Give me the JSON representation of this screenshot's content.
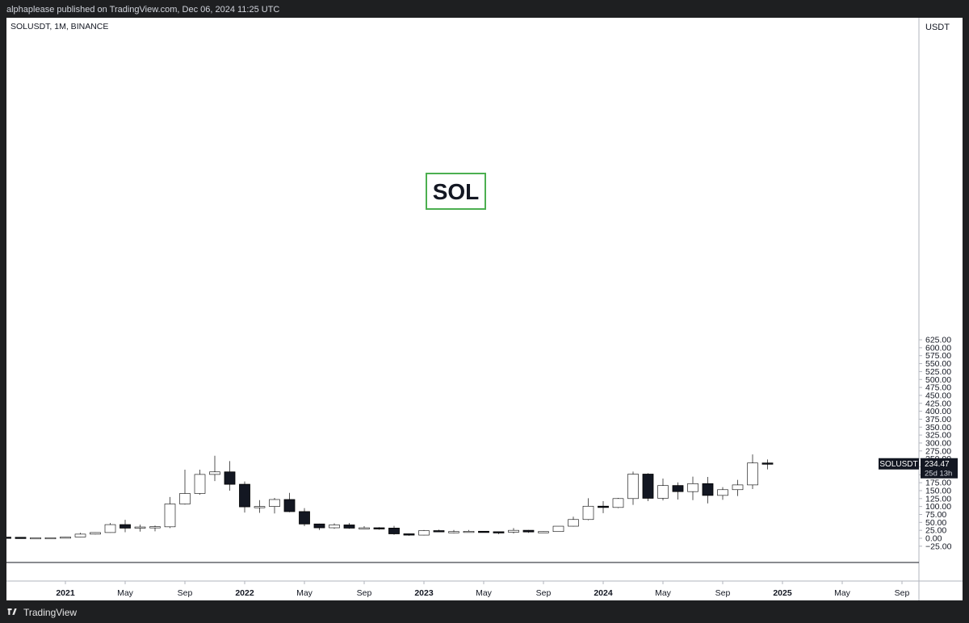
{
  "header": {
    "published_line": "alphaplease published on TradingView.com, Dec 06, 2024 11:25 UTC"
  },
  "footer": {
    "brand": "TradingView",
    "logo_icon": "tradingview-logo-icon"
  },
  "colors": {
    "panel_bg": "#ffffff",
    "up_candle_fill": "#ffffff",
    "candle_outline": "#000000",
    "down_candle_fill": "#131722",
    "wick": "#555555",
    "label_box": "#4caf50",
    "price_tag_bg": "#131722",
    "axis_text": "#131722"
  },
  "chart_data": {
    "type": "candlestick",
    "symbol_line": "SOLUSDT, 1M, BINANCE",
    "currency": "USDT",
    "annotation": "SOL",
    "price_tag": {
      "symbol": "SOLUSDT",
      "value": "234.47",
      "countdown": "25d 13h",
      "price": 234.47
    },
    "ylim": [
      -30,
      635
    ],
    "y_ticks": [
      -25,
      0,
      25,
      50,
      75,
      100,
      125,
      150,
      175,
      200,
      225,
      250,
      275,
      300,
      325,
      350,
      375,
      400,
      425,
      450,
      475,
      500,
      525,
      550,
      575,
      600,
      625
    ],
    "y_tick_labels": [
      "−25.00",
      "0.00",
      "25.00",
      "50.00",
      "75.00",
      "100.00",
      "125.00",
      "150.00",
      "175.00",
      "200.00",
      "225.00",
      "250.00",
      "275.00",
      "300.00",
      "325.00",
      "350.00",
      "375.00",
      "400.00",
      "425.00",
      "450.00",
      "475.00",
      "500.00",
      "525.00",
      "550.00",
      "575.00",
      "600.00",
      "625.00"
    ],
    "x_ticks": [
      {
        "label": "2021",
        "month_index": 0,
        "major": true
      },
      {
        "label": "May",
        "month_index": 4,
        "major": false
      },
      {
        "label": "Sep",
        "month_index": 8,
        "major": false
      },
      {
        "label": "2022",
        "month_index": 12,
        "major": true
      },
      {
        "label": "May",
        "month_index": 16,
        "major": false
      },
      {
        "label": "Sep",
        "month_index": 20,
        "major": false
      },
      {
        "label": "2023",
        "month_index": 24,
        "major": true
      },
      {
        "label": "May",
        "month_index": 28,
        "major": false
      },
      {
        "label": "Sep",
        "month_index": 32,
        "major": false
      },
      {
        "label": "2024",
        "month_index": 36,
        "major": true
      },
      {
        "label": "May",
        "month_index": 40,
        "major": false
      },
      {
        "label": "Sep",
        "month_index": 44,
        "major": false
      },
      {
        "label": "2025",
        "month_index": 48,
        "major": true
      },
      {
        "label": "May",
        "month_index": 52,
        "major": false
      },
      {
        "label": "Sep",
        "month_index": 56,
        "major": false
      }
    ],
    "candles": [
      {
        "date": "2020-09",
        "o": 3.5,
        "h": 4.5,
        "l": 2.0,
        "c": 3.0
      },
      {
        "date": "2020-10",
        "o": 3.0,
        "h": 3.5,
        "l": 1.5,
        "c": 2.0
      },
      {
        "date": "2020-11",
        "o": 1.5,
        "h": 2.5,
        "l": 1.2,
        "c": 1.8
      },
      {
        "date": "2020-12",
        "o": 1.5,
        "h": 2.2,
        "l": 1.3,
        "c": 1.9
      },
      {
        "date": "2021-01",
        "o": 1.5,
        "h": 4.5,
        "l": 1.4,
        "c": 4.0
      },
      {
        "date": "2021-02",
        "o": 4.0,
        "h": 17.0,
        "l": 3.5,
        "c": 13.0
      },
      {
        "date": "2021-03",
        "o": 13.0,
        "h": 18.5,
        "l": 12.0,
        "c": 18.0
      },
      {
        "date": "2021-04",
        "o": 18.0,
        "h": 48.0,
        "l": 17.5,
        "c": 43.0
      },
      {
        "date": "2021-05",
        "o": 43.0,
        "h": 58.0,
        "l": 19.0,
        "c": 32.0
      },
      {
        "date": "2021-06",
        "o": 32.0,
        "h": 43.0,
        "l": 21.0,
        "c": 35.5
      },
      {
        "date": "2021-07",
        "o": 35.0,
        "h": 40.0,
        "l": 22.0,
        "c": 36.5
      },
      {
        "date": "2021-08",
        "o": 36.0,
        "h": 130.0,
        "l": 32.0,
        "c": 108.0
      },
      {
        "date": "2021-09",
        "o": 108.0,
        "h": 216.0,
        "l": 106.0,
        "c": 141.0
      },
      {
        "date": "2021-10",
        "o": 141.0,
        "h": 216.0,
        "l": 137.0,
        "c": 201.0
      },
      {
        "date": "2021-11",
        "o": 201.0,
        "h": 260.0,
        "l": 180.0,
        "c": 209.0
      },
      {
        "date": "2021-12",
        "o": 209.0,
        "h": 243.0,
        "l": 150.0,
        "c": 170.0
      },
      {
        "date": "2022-01",
        "o": 170.0,
        "h": 179.0,
        "l": 81.0,
        "c": 99.0
      },
      {
        "date": "2022-02",
        "o": 99.0,
        "h": 120.0,
        "l": 80.0,
        "c": 100.0
      },
      {
        "date": "2022-03",
        "o": 100.0,
        "h": 127.0,
        "l": 78.0,
        "c": 122.0
      },
      {
        "date": "2022-04",
        "o": 122.0,
        "h": 143.0,
        "l": 82.0,
        "c": 84.0
      },
      {
        "date": "2022-05",
        "o": 84.0,
        "h": 95.0,
        "l": 38.0,
        "c": 45.0
      },
      {
        "date": "2022-06",
        "o": 45.0,
        "h": 46.0,
        "l": 26.0,
        "c": 33.0
      },
      {
        "date": "2022-07",
        "o": 33.0,
        "h": 47.0,
        "l": 30.0,
        "c": 42.0
      },
      {
        "date": "2022-08",
        "o": 42.0,
        "h": 48.0,
        "l": 30.0,
        "c": 32.0
      },
      {
        "date": "2022-09",
        "o": 32.0,
        "h": 38.0,
        "l": 29.0,
        "c": 33.0
      },
      {
        "date": "2022-10",
        "o": 33.0,
        "h": 35.0,
        "l": 27.0,
        "c": 32.0
      },
      {
        "date": "2022-11",
        "o": 32.0,
        "h": 39.0,
        "l": 11.0,
        "c": 14.0
      },
      {
        "date": "2022-12",
        "o": 14.0,
        "h": 14.5,
        "l": 8.0,
        "c": 10.0
      },
      {
        "date": "2023-01",
        "o": 10.0,
        "h": 26.0,
        "l": 9.0,
        "c": 24.0
      },
      {
        "date": "2023-02",
        "o": 24.0,
        "h": 27.0,
        "l": 20.0,
        "c": 21.0
      },
      {
        "date": "2023-03",
        "o": 21.0,
        "h": 26.0,
        "l": 16.0,
        "c": 21.0
      },
      {
        "date": "2023-04",
        "o": 21.0,
        "h": 26.0,
        "l": 20.0,
        "c": 22.0
      },
      {
        "date": "2023-05",
        "o": 22.0,
        "h": 22.5,
        "l": 18.5,
        "c": 20.5
      },
      {
        "date": "2023-06",
        "o": 20.5,
        "h": 21.0,
        "l": 13.0,
        "c": 19.0
      },
      {
        "date": "2023-07",
        "o": 19.0,
        "h": 32.0,
        "l": 15.0,
        "c": 25.0
      },
      {
        "date": "2023-08",
        "o": 25.0,
        "h": 26.0,
        "l": 17.0,
        "c": 20.0
      },
      {
        "date": "2023-09",
        "o": 20.0,
        "h": 22.0,
        "l": 17.5,
        "c": 21.0
      },
      {
        "date": "2023-10",
        "o": 21.0,
        "h": 38.0,
        "l": 20.5,
        "c": 38.0
      },
      {
        "date": "2023-11",
        "o": 38.0,
        "h": 68.0,
        "l": 37.0,
        "c": 59.0
      },
      {
        "date": "2023-12",
        "o": 59.0,
        "h": 126.0,
        "l": 57.0,
        "c": 101.0
      },
      {
        "date": "2024-01",
        "o": 101.0,
        "h": 117.0,
        "l": 79.0,
        "c": 97.0
      },
      {
        "date": "2024-02",
        "o": 97.0,
        "h": 127.0,
        "l": 95.0,
        "c": 125.0
      },
      {
        "date": "2024-03",
        "o": 125.0,
        "h": 210.0,
        "l": 105.0,
        "c": 202.0
      },
      {
        "date": "2024-04",
        "o": 202.0,
        "h": 205.0,
        "l": 117.0,
        "c": 126.0
      },
      {
        "date": "2024-05",
        "o": 126.0,
        "h": 188.0,
        "l": 119.0,
        "c": 166.0
      },
      {
        "date": "2024-06",
        "o": 166.0,
        "h": 176.0,
        "l": 122.0,
        "c": 147.0
      },
      {
        "date": "2024-07",
        "o": 147.0,
        "h": 194.0,
        "l": 120.0,
        "c": 172.0
      },
      {
        "date": "2024-08",
        "o": 172.0,
        "h": 193.0,
        "l": 110.0,
        "c": 135.0
      },
      {
        "date": "2024-09",
        "o": 135.0,
        "h": 161.0,
        "l": 121.0,
        "c": 153.0
      },
      {
        "date": "2024-10",
        "o": 153.0,
        "h": 184.0,
        "l": 133.0,
        "c": 168.0
      },
      {
        "date": "2024-11",
        "o": 168.0,
        "h": 264.0,
        "l": 155.0,
        "c": 237.0
      },
      {
        "date": "2024-12",
        "o": 237.0,
        "h": 248.0,
        "l": 217.0,
        "c": 234.5
      }
    ]
  }
}
